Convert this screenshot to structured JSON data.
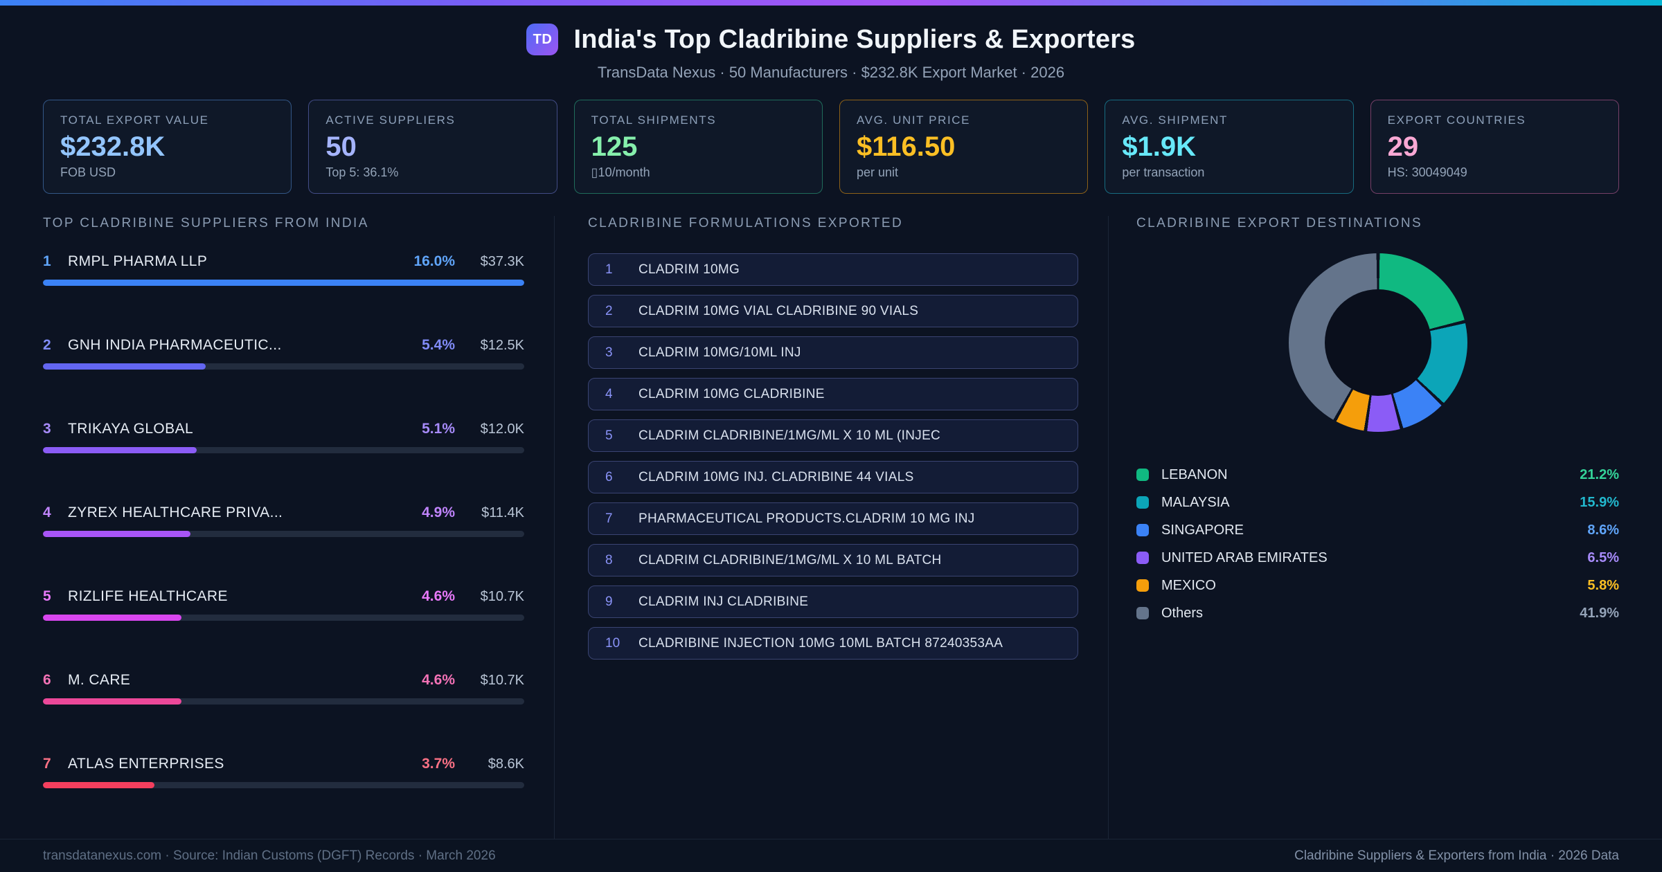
{
  "header": {
    "logo": "TD",
    "title": "India's Top Cladribine Suppliers & Exporters",
    "subtitle": "TransData Nexus · 50 Manufacturers · $232.8K Export Market · 2026"
  },
  "stats": [
    {
      "label": "TOTAL EXPORT VALUE",
      "value": "$232.8K",
      "sub": "FOB USD",
      "value_color": "#93c5fd",
      "border_color": "rgba(96,165,250,0.45)"
    },
    {
      "label": "ACTIVE SUPPLIERS",
      "value": "50",
      "sub": "Top 5: 36.1%",
      "value_color": "#a5b4fc",
      "border_color": "rgba(129,140,248,0.45)"
    },
    {
      "label": "TOTAL SHIPMENTS",
      "value": "125",
      "sub": "▯10/month",
      "value_color": "#86efac",
      "border_color": "rgba(52,211,153,0.45)"
    },
    {
      "label": "AVG. UNIT PRICE",
      "value": "$116.50",
      "sub": "per unit",
      "value_color": "#fbbf24",
      "border_color": "rgba(245,158,11,0.55)"
    },
    {
      "label": "AVG. SHIPMENT",
      "value": "$1.9K",
      "sub": "per transaction",
      "value_color": "#67e8f9",
      "border_color": "rgba(34,211,238,0.45)"
    },
    {
      "label": "EXPORT COUNTRIES",
      "value": "29",
      "sub": "HS: 30049049",
      "value_color": "#f9a8d4",
      "border_color": "rgba(244,114,182,0.45)"
    }
  ],
  "formulations": {
    "title": "CLADRIBINE FORMULATIONS EXPORTED",
    "items": [
      "CLADRIM 10MG",
      "CLADRIM 10MG VIAL CLADRIBINE 90 VIALS",
      "CLADRIM 10MG/10ML INJ",
      "CLADRIM 10MG CLADRIBINE",
      "CLADRIM CLADRIBINE/1MG/ML X 10 ML (INJEC",
      "CLADRIM 10MG INJ. CLADRIBINE 44 VIALS",
      "PHARMACEUTICAL PRODUCTS.CLADRIM 10 MG INJ",
      "CLADRIM CLADRIBINE/1MG/ML X 10 ML BATCH",
      "CLADRIM INJ CLADRIBINE",
      "CLADRIBINE INJECTION 10MG 10ML BATCH 87240353AA"
    ]
  },
  "chart_data": [
    {
      "type": "bar",
      "title": "TOP CLADRIBINE SUPPLIERS FROM INDIA",
      "categories": [
        "RMPL PHARMA LLP",
        "GNH INDIA PHARMACEUTIC...",
        "TRIKAYA GLOBAL",
        "ZYREX HEALTHCARE PRIVA...",
        "RIZLIFE HEALTHCARE",
        "M. CARE",
        "ATLAS ENTERPRISES"
      ],
      "values": [
        16.0,
        5.4,
        5.1,
        4.9,
        4.6,
        4.6,
        3.7
      ],
      "unit": "%",
      "value_labels": [
        "$37.3K",
        "$12.5K",
        "$12.0K",
        "$11.4K",
        "$10.7K",
        "$10.7K",
        "$8.6K"
      ],
      "bar_colors": [
        "#3b82f6",
        "#6366f1",
        "#8b5cf6",
        "#a855f7",
        "#d946ef",
        "#ec4899",
        "#f43f5e"
      ],
      "accent_colors": [
        "#60a5fa",
        "#818cf8",
        "#a78bfa",
        "#c084fc",
        "#e879f9",
        "#f472b6",
        "#fb7185"
      ],
      "xlim": [
        0,
        16.0
      ]
    },
    {
      "type": "pie",
      "title": "CLADRIBINE EXPORT DESTINATIONS",
      "categories": [
        "LEBANON",
        "MALAYSIA",
        "SINGAPORE",
        "UNITED ARAB EMIRATES",
        "MEXICO",
        "Others"
      ],
      "values": [
        21.2,
        15.9,
        8.6,
        6.5,
        5.8,
        41.9
      ],
      "colors": [
        "#10b981",
        "#0ca5b8",
        "#3b82f6",
        "#8b5cf6",
        "#f59e0b",
        "#64748b"
      ],
      "value_colors": [
        "#34d399",
        "#22b8ce",
        "#60a5fa",
        "#a78bfa",
        "#fbbf24",
        "#94a3b8"
      ],
      "donut": true,
      "legend_position": "below"
    }
  ],
  "footer": {
    "left": "transdatanexus.com · Source: Indian Customs (DGFT) Records · March 2026",
    "right": "Cladribine Suppliers & Exporters from India · 2026 Data"
  }
}
